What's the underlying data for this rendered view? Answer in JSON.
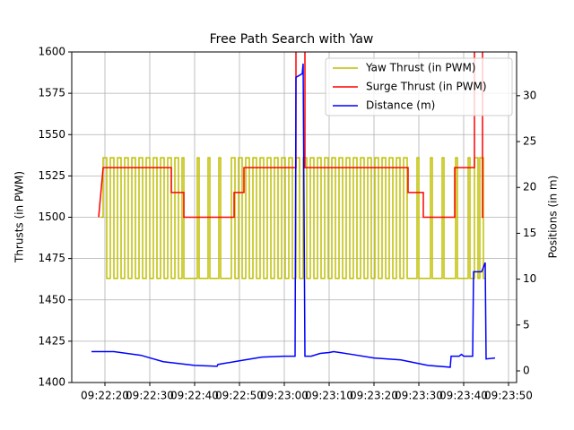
{
  "chart_data": {
    "type": "line",
    "title": "Free Path Search with Yaw",
    "y_label": "Thrusts (in PWM)",
    "y2_label": "Positions (in m)",
    "xlim": [
      "09:22:12.6",
      "09:23:51.8"
    ],
    "xticks": [
      "09:22:20",
      "09:22:30",
      "09:22:40",
      "09:22:50",
      "09:23:00",
      "09:23:10",
      "09:23:20",
      "09:23:30",
      "09:23:40",
      "09:23:50"
    ],
    "ylim": [
      1400,
      1600
    ],
    "yticks": [
      1400,
      1425,
      1450,
      1475,
      1500,
      1525,
      1550,
      1575,
      1600
    ],
    "y2lim": [
      -1.27,
      34.77
    ],
    "y2ticks": [
      0,
      5,
      10,
      15,
      20,
      25,
      30
    ],
    "grid": true,
    "legend": "upper right",
    "series": [
      {
        "name": "Yaw Thrust (in PWM)",
        "color": "#bfbf00",
        "drawstyle": "steps-post",
        "x": [
          "09:22:19.0",
          "09:22:19.6",
          "09:22:20.4",
          "09:22:21.2",
          "09:22:22.0",
          "09:22:22.8",
          "09:22:23.6",
          "09:22:24.4",
          "09:22:25.2",
          "09:22:26.0",
          "09:22:26.8",
          "09:22:27.6",
          "09:22:28.4",
          "09:22:29.2",
          "09:22:30.0",
          "09:22:30.8",
          "09:22:31.6",
          "09:22:32.4",
          "09:22:33.2",
          "09:22:34.0",
          "09:22:34.8",
          "09:22:35.6",
          "09:22:36.4",
          "09:22:37.2",
          "09:22:37.6",
          "09:22:40.6",
          "09:22:41.0",
          "09:22:43.0",
          "09:22:43.4",
          "09:22:45.4",
          "09:22:45.8",
          "09:22:48.2",
          "09:22:49.0",
          "09:22:49.8",
          "09:22:50.6",
          "09:22:51.4",
          "09:22:52.2",
          "09:22:53.0",
          "09:22:53.8",
          "09:22:54.6",
          "09:22:55.4",
          "09:22:56.2",
          "09:22:57.0",
          "09:22:57.8",
          "09:22:58.6",
          "09:22:59.4",
          "09:23:00.2",
          "09:23:01.0",
          "09:23:01.8",
          "09:23:02.6",
          "09:23:03.4",
          "09:23:04.2",
          "09:23:05.0",
          "09:23:05.8",
          "09:23:06.6",
          "09:23:07.4",
          "09:23:08.2",
          "09:23:09.0",
          "09:23:09.8",
          "09:23:10.6",
          "09:23:11.4",
          "09:23:12.2",
          "09:23:13.0",
          "09:23:13.8",
          "09:23:14.6",
          "09:23:15.4",
          "09:23:16.2",
          "09:23:17.0",
          "09:23:17.8",
          "09:23:18.6",
          "09:23:19.4",
          "09:23:20.2",
          "09:23:21.0",
          "09:23:21.8",
          "09:23:22.6",
          "09:23:23.4",
          "09:23:24.2",
          "09:23:25.0",
          "09:23:25.8",
          "09:23:26.6",
          "09:23:27.4",
          "09:23:29.6",
          "09:23:30.0",
          "09:23:32.6",
          "09:23:33.0",
          "09:23:35.2",
          "09:23:35.6",
          "09:23:38.2",
          "09:23:38.6",
          "09:23:41.0",
          "09:23:41.4",
          "09:23:42.4",
          "09:23:43.2",
          "09:23:43.6",
          "09:23:44.4",
          "09:23:44.8"
        ],
        "values": [
          1500,
          1536,
          1463,
          1536,
          1463,
          1536,
          1463,
          1536,
          1463,
          1536,
          1463,
          1536,
          1463,
          1536,
          1463,
          1536,
          1463,
          1536,
          1463,
          1536,
          1463,
          1536,
          1463,
          1536,
          1463,
          1536,
          1463,
          1536,
          1463,
          1536,
          1463,
          1536,
          1463,
          1536,
          1463,
          1536,
          1463,
          1536,
          1463,
          1536,
          1463,
          1536,
          1463,
          1536,
          1463,
          1536,
          1463,
          1536,
          1463,
          1536,
          1463,
          1536,
          1463,
          1536,
          1463,
          1536,
          1463,
          1536,
          1463,
          1536,
          1463,
          1536,
          1463,
          1536,
          1463,
          1536,
          1463,
          1536,
          1463,
          1536,
          1463,
          1536,
          1463,
          1536,
          1463,
          1536,
          1463,
          1536,
          1463,
          1536,
          1463,
          1536,
          1463,
          1536,
          1463,
          1536,
          1463,
          1536,
          1463,
          1536,
          1463,
          1536,
          1463,
          1536,
          1463,
          1463
        ]
      },
      {
        "name": "Surge Thrust (in PWM)",
        "color": "#ff0000",
        "x": [
          "09:22:18.6",
          "09:22:19.6",
          "09:22:34.8",
          "09:22:34.8",
          "09:22:37.6",
          "09:22:37.6",
          "09:22:48.8",
          "09:22:48.8",
          "09:22:51.0",
          "09:22:51.0",
          "09:23:02.6",
          "09:23:02.6",
          "09:23:04.6",
          "09:23:04.6",
          "09:23:27.6",
          "09:23:27.6",
          "09:23:31.0",
          "09:23:31.0",
          "09:23:38.0",
          "09:23:38.0",
          "09:23:42.4",
          "09:23:42.4",
          "09:23:44.2",
          "09:23:44.2",
          "09:23:44.4"
        ],
        "values": [
          1500,
          1530,
          1530,
          1515,
          1515,
          1500,
          1500,
          1515,
          1515,
          1530,
          1530,
          1650,
          1650,
          1530,
          1530,
          1515,
          1515,
          1500,
          1500,
          1530,
          1530,
          1650,
          1650,
          1500,
          1500
        ]
      },
      {
        "name": "Distance (m)",
        "color": "#0000ff",
        "axis": "y2",
        "x": [
          "09:22:17.0",
          "09:22:22.0",
          "09:22:28.0",
          "09:22:33.0",
          "09:22:40.0",
          "09:22:45.0",
          "09:22:45.2",
          "09:22:50.0",
          "09:22:55.0",
          "09:23:00.0",
          "09:23:02.4",
          "09:23:02.6",
          "09:23:04.0",
          "09:23:04.2",
          "09:23:04.6",
          "09:23:06.0",
          "09:23:08.0",
          "09:23:10.0",
          "09:23:11.0",
          "09:23:15.0",
          "09:23:20.0",
          "09:23:26.0",
          "09:23:32.0",
          "09:23:37.0",
          "09:23:37.2",
          "09:23:39.0",
          "09:23:39.5",
          "09:23:40.0",
          "09:23:42.0",
          "09:23:42.2",
          "09:23:44.0",
          "09:23:44.8",
          "09:23:45.0",
          "09:23:47.0"
        ],
        "values": [
          2.1,
          2.1,
          1.7,
          1.0,
          0.6,
          0.5,
          0.7,
          1.1,
          1.5,
          1.6,
          1.6,
          32,
          32.4,
          33.5,
          1.6,
          1.6,
          1.9,
          2.0,
          2.1,
          1.8,
          1.4,
          1.2,
          0.6,
          0.4,
          1.6,
          1.6,
          1.8,
          1.6,
          1.6,
          10.8,
          10.8,
          11.8,
          1.3,
          1.4
        ]
      }
    ]
  }
}
